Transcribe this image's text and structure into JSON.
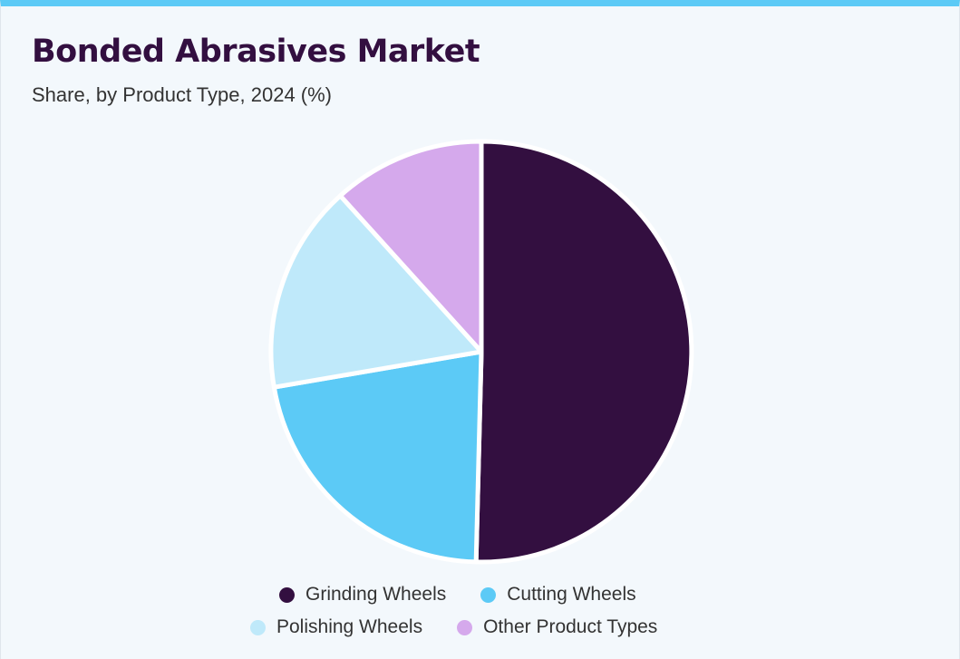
{
  "chart_data": {
    "type": "pie",
    "title": "Bonded Abrasives Market",
    "subtitle": "Share, by Product Type, 2024 (%)",
    "categories": [
      "Grinding Wheels",
      "Cutting Wheels",
      "Polishing Wheels",
      "Other Product Types"
    ],
    "values": [
      50.4,
      21.9,
      16.0,
      11.7
    ],
    "colors": [
      "#330f40",
      "#5ccaf6",
      "#bfe9fa",
      "#d5a9ec"
    ],
    "start_angle_deg": 0,
    "direction": "clockwise",
    "legend_position": "bottom"
  }
}
